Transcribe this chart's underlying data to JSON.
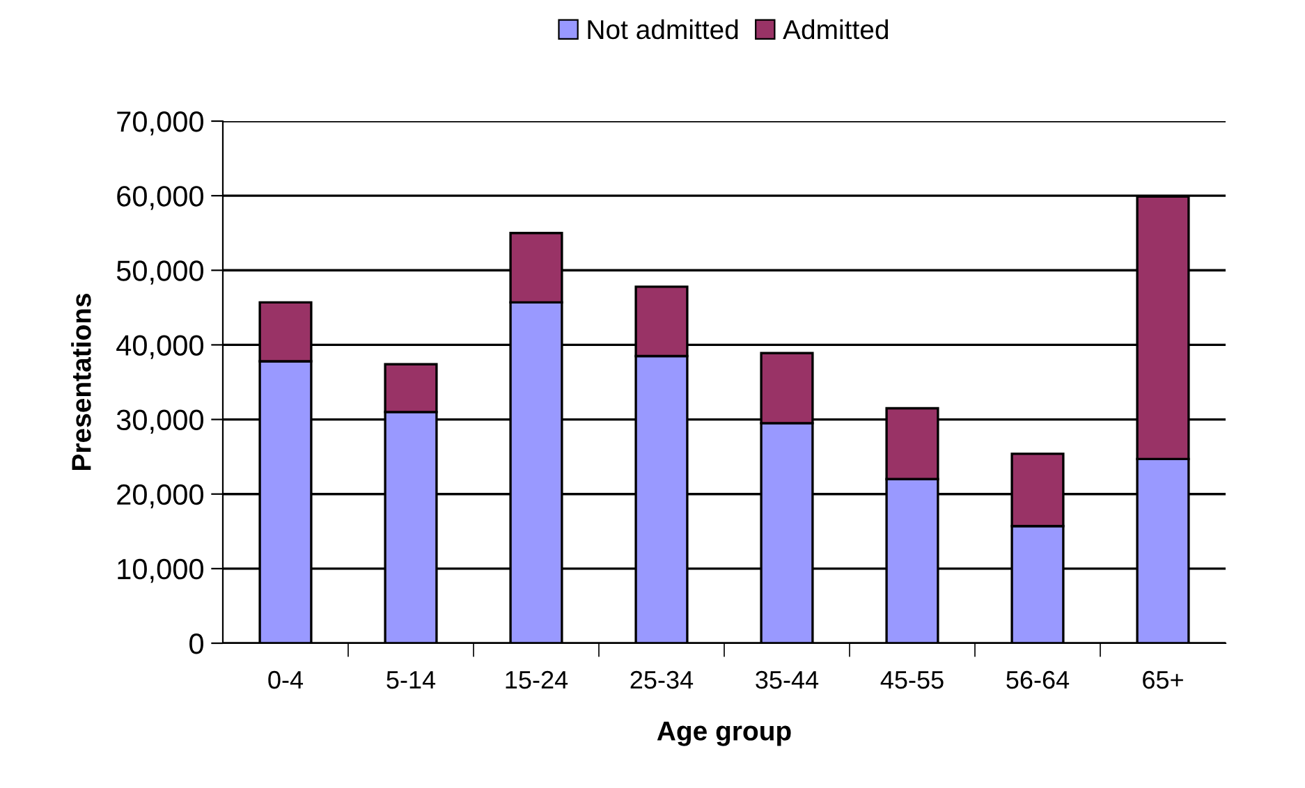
{
  "chart_data": {
    "type": "bar",
    "stacked": true,
    "xlabel": "Age group",
    "ylabel": "Presentations",
    "categories": [
      "0-4",
      "5-14",
      "15-24",
      "25-34",
      "35-44",
      "45-55",
      "56-64",
      "65+"
    ],
    "series": [
      {
        "name": "Not admitted",
        "color": "#9999ff",
        "values": [
          37800,
          31000,
          45700,
          38500,
          29500,
          22000,
          15700,
          24700
        ]
      },
      {
        "name": "Admitted",
        "color": "#993366",
        "values": [
          7900,
          6400,
          9300,
          9300,
          9400,
          9500,
          9700,
          35200
        ]
      }
    ],
    "ylim": [
      0,
      70000
    ],
    "yticks": [
      {
        "value": 0,
        "label": "0"
      },
      {
        "value": 10000,
        "label": "10,000"
      },
      {
        "value": 20000,
        "label": "20,000"
      },
      {
        "value": 30000,
        "label": "30,000"
      },
      {
        "value": 40000,
        "label": "40,000"
      },
      {
        "value": 50000,
        "label": "50,000"
      },
      {
        "value": 60000,
        "label": "60,000"
      },
      {
        "value": 70000,
        "label": "70,000"
      }
    ],
    "grid": "y",
    "legend": "top"
  }
}
